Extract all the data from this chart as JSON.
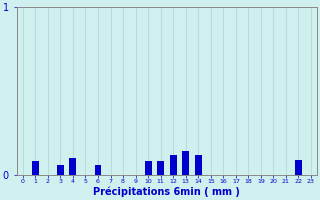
{
  "hours": [
    0,
    1,
    2,
    3,
    4,
    5,
    6,
    7,
    8,
    9,
    10,
    11,
    12,
    13,
    14,
    15,
    16,
    17,
    18,
    19,
    20,
    21,
    22,
    23
  ],
  "values": [
    0,
    0.08,
    0,
    0.06,
    0.1,
    0,
    0.06,
    0,
    0,
    0,
    0.08,
    0.08,
    0.12,
    0.14,
    0.12,
    0,
    0,
    0,
    0,
    0,
    0,
    0,
    0.09,
    0
  ],
  "ylim": [
    0,
    1
  ],
  "yticks": [
    0,
    1
  ],
  "xlabel": "Précipitations 6min ( mm )",
  "bar_color": "#0000cc",
  "bg_color": "#cff0ee",
  "grid_color": "#b0d8d8",
  "axis_color": "#888888",
  "text_color": "#0000cc",
  "bar_width": 0.55,
  "figsize": [
    3.2,
    2.0
  ],
  "dpi": 100
}
